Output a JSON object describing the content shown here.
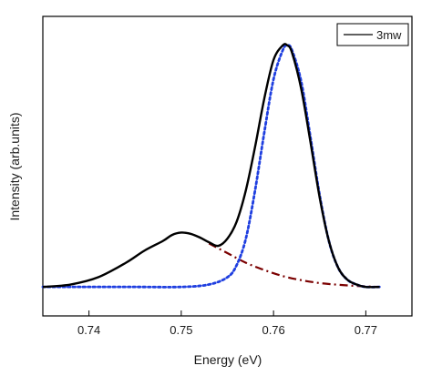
{
  "chart_data": {
    "type": "line",
    "xlabel": "Energy (eV)",
    "ylabel": "Intensity (arb.units)",
    "xlim": [
      0.735,
      0.775
    ],
    "ylim": [
      -0.12,
      1.12
    ],
    "xticks": [
      0.74,
      0.75,
      0.76,
      0.77
    ],
    "xtick_labels": [
      "0.74",
      "0.75",
      "0.76",
      "0.77"
    ],
    "y_tick_labels": false,
    "grid": false,
    "legend": {
      "position": "top-right",
      "entries": [
        "3mw"
      ]
    },
    "series": [
      {
        "name": "3mw",
        "style": "solid",
        "color": "#000000",
        "x": [
          0.735,
          0.738,
          0.741,
          0.744,
          0.746,
          0.748,
          0.749,
          0.75,
          0.751,
          0.752,
          0.753,
          0.754,
          0.755,
          0.756,
          0.757,
          0.758,
          0.759,
          0.76,
          0.761,
          0.7615,
          0.762,
          0.763,
          0.764,
          0.765,
          0.766,
          0.767,
          0.768,
          0.769,
          0.77,
          0.7715
        ],
        "y": [
          0.0,
          0.01,
          0.04,
          0.1,
          0.15,
          0.19,
          0.215,
          0.225,
          0.22,
          0.205,
          0.185,
          0.17,
          0.2,
          0.27,
          0.4,
          0.58,
          0.78,
          0.94,
          1.0,
          1.0,
          0.97,
          0.82,
          0.6,
          0.37,
          0.19,
          0.08,
          0.03,
          0.01,
          0.0,
          0.0
        ]
      },
      {
        "style": "dash-dot",
        "color": "#7b0000",
        "x": [
          0.753,
          0.755,
          0.757,
          0.759,
          0.761,
          0.763,
          0.765,
          0.767,
          0.769,
          0.7715
        ],
        "y": [
          0.18,
          0.14,
          0.1,
          0.07,
          0.045,
          0.028,
          0.016,
          0.009,
          0.004,
          0.0
        ]
      },
      {
        "style": "dotted",
        "color": "#1f3fe0",
        "x": [
          0.735,
          0.74,
          0.745,
          0.75,
          0.753,
          0.755,
          0.756,
          0.757,
          0.758,
          0.759,
          0.76,
          0.761,
          0.7615,
          0.762,
          0.763,
          0.764,
          0.765,
          0.766,
          0.767,
          0.768,
          0.769,
          0.77,
          0.7715
        ],
        "y": [
          0.0,
          0.0,
          0.0,
          0.0,
          0.01,
          0.04,
          0.09,
          0.2,
          0.4,
          0.64,
          0.86,
          0.98,
          1.0,
          0.98,
          0.85,
          0.62,
          0.38,
          0.19,
          0.08,
          0.03,
          0.01,
          0.0,
          0.0
        ]
      }
    ]
  }
}
